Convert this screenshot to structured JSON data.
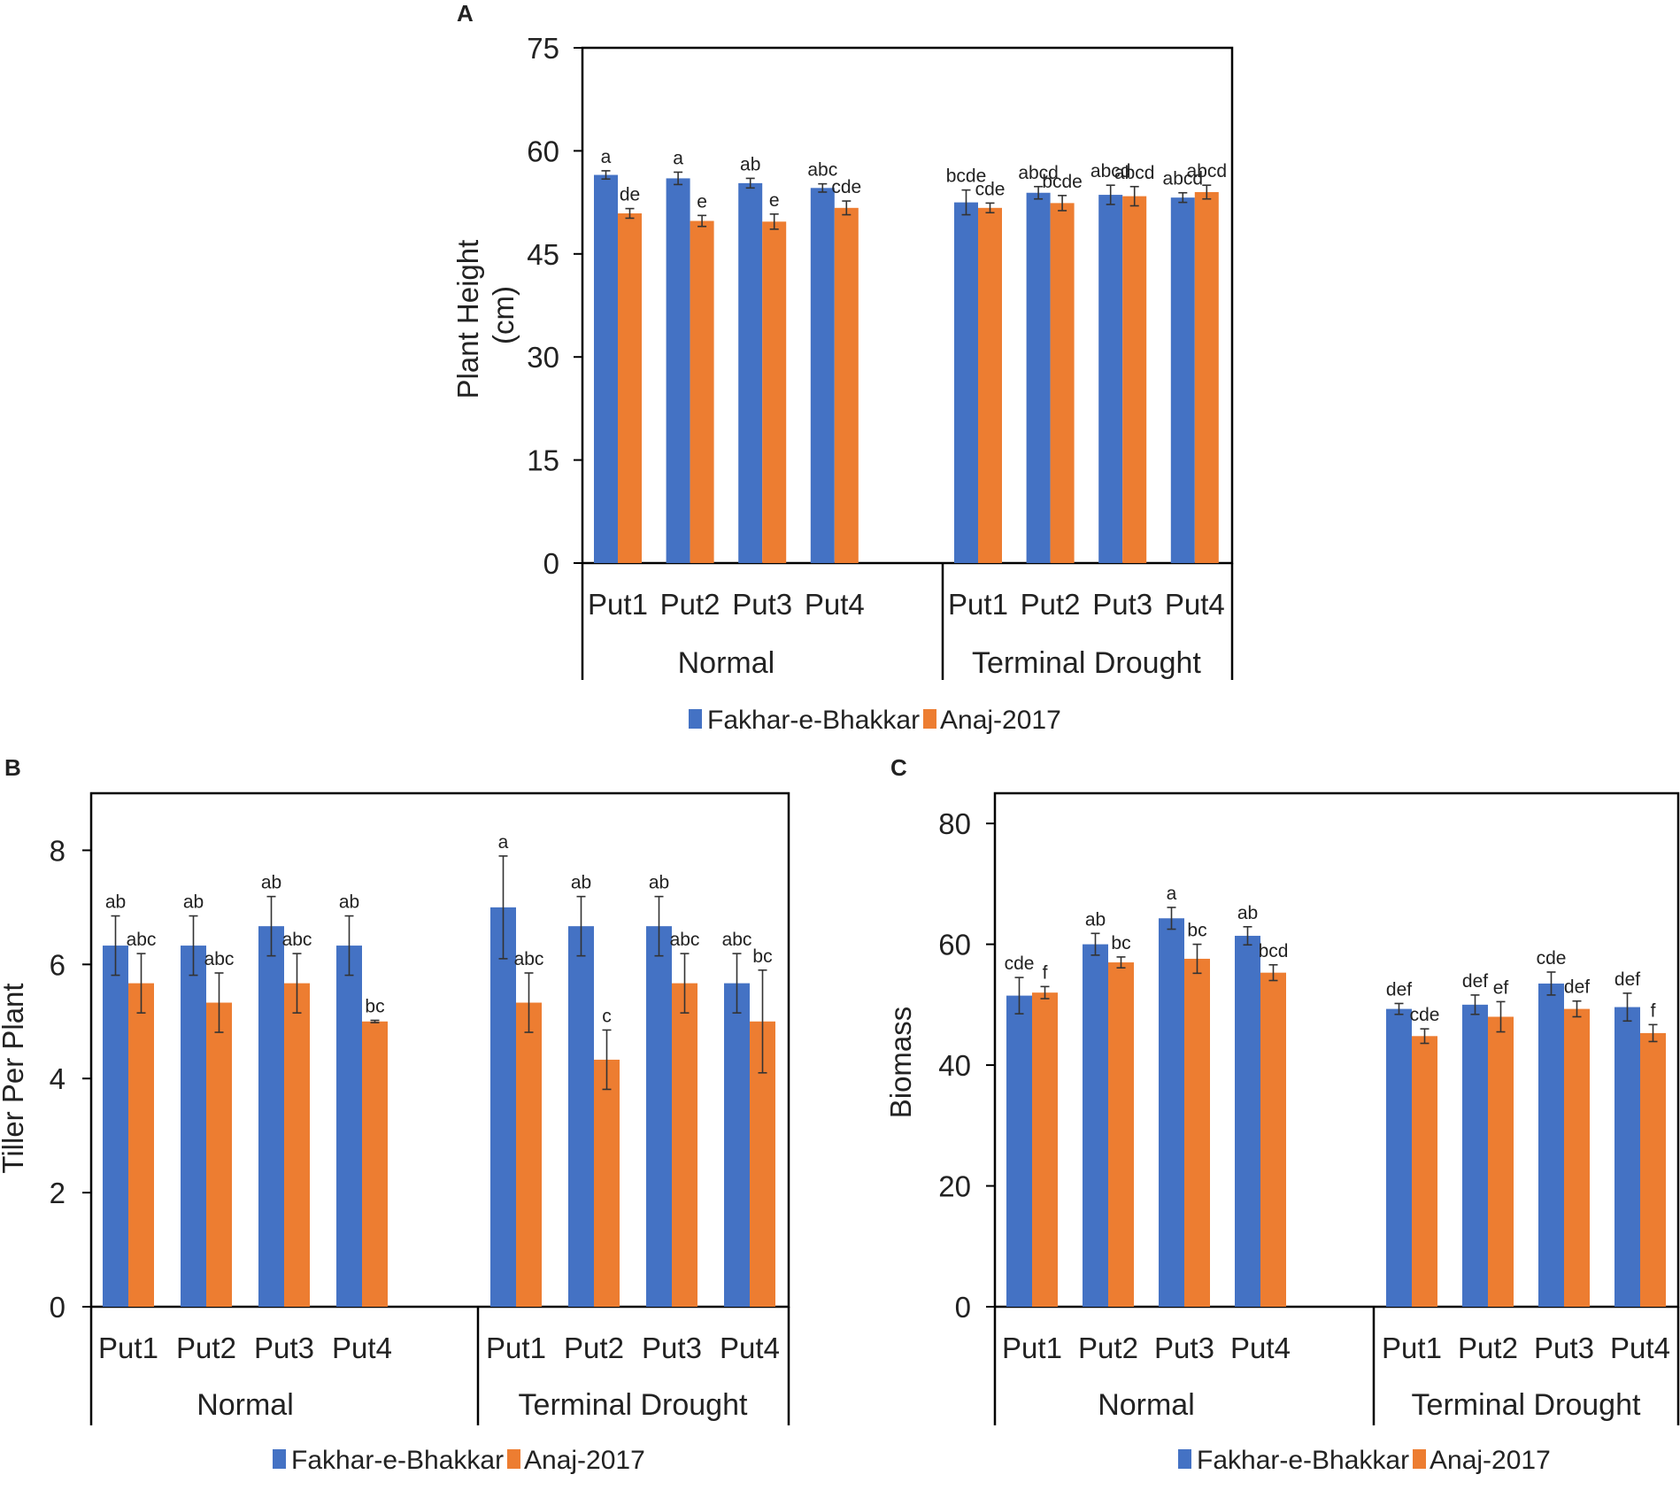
{
  "colors": {
    "series1": "#4472C4",
    "series2": "#ED7D31",
    "axis": "#000000"
  },
  "legend": {
    "series1": "Fakhar-e-Bhakkar",
    "series2": "Anaj-2017"
  },
  "chart_data": [
    {
      "panel": "A",
      "type": "bar",
      "ylabel": "Plant Height\n(cm)",
      "ylim": [
        0,
        75
      ],
      "yticks": [
        0,
        15,
        30,
        45,
        60,
        75
      ],
      "categories": [
        "Put1",
        "Put2",
        "Put3",
        "Put4"
      ],
      "groups": [
        "Normal",
        "Terminal Drought"
      ],
      "series": [
        {
          "name": "Fakhar-e-Bhakkar",
          "values": [
            [
              56.5,
              56.0,
              55.3,
              54.6
            ],
            [
              52.5,
              53.9,
              53.6,
              53.2
            ]
          ],
          "errors": [
            [
              0.6,
              0.9,
              0.7,
              0.6
            ],
            [
              1.8,
              0.9,
              1.4,
              0.7
            ]
          ],
          "labels": [
            [
              "a",
              "a",
              "ab",
              "abc"
            ],
            [
              "bcde",
              "abcd",
              "abcd",
              "abcd"
            ]
          ]
        },
        {
          "name": "Anaj-2017",
          "values": [
            [
              50.9,
              49.8,
              49.7,
              51.7
            ],
            [
              51.7,
              52.4,
              53.4,
              54.0
            ]
          ],
          "errors": [
            [
              0.7,
              0.8,
              1.1,
              1.0
            ],
            [
              0.7,
              1.1,
              1.4,
              1.0
            ]
          ],
          "labels": [
            [
              "de",
              "e",
              "e",
              "cde"
            ],
            [
              "cde",
              "bcde",
              "abcd",
              "abcd"
            ]
          ]
        }
      ]
    },
    {
      "panel": "B",
      "type": "bar",
      "ylabel": "Tiller Per Plant",
      "ylim": [
        0,
        9
      ],
      "yticks": [
        0,
        2,
        4,
        6,
        8
      ],
      "categories": [
        "Put1",
        "Put2",
        "Put3",
        "Put4"
      ],
      "groups": [
        "Normal",
        "Terminal Drought"
      ],
      "series": [
        {
          "name": "Fakhar-e-Bhakkar",
          "values": [
            [
              6.33,
              6.33,
              6.67,
              6.33
            ],
            [
              7.0,
              6.67,
              6.67,
              5.67
            ]
          ],
          "errors": [
            [
              0.52,
              0.52,
              0.52,
              0.52
            ],
            [
              0.9,
              0.52,
              0.52,
              0.52
            ]
          ],
          "labels": [
            [
              "ab",
              "ab",
              "ab",
              "ab"
            ],
            [
              "a",
              "ab",
              "ab",
              "abc"
            ]
          ]
        },
        {
          "name": "Anaj-2017",
          "values": [
            [
              5.67,
              5.33,
              5.67,
              5.0
            ],
            [
              5.33,
              4.33,
              5.67,
              5.0
            ]
          ],
          "errors": [
            [
              0.52,
              0.52,
              0.52,
              0.02
            ],
            [
              0.52,
              0.52,
              0.52,
              0.9
            ]
          ],
          "labels": [
            [
              "abc",
              "abc",
              "abc",
              "bc"
            ],
            [
              "abc",
              "c",
              "abc",
              "bc"
            ]
          ]
        }
      ]
    },
    {
      "panel": "C",
      "type": "bar",
      "ylabel": "Biomass",
      "ylim": [
        0,
        85
      ],
      "yticks": [
        0,
        20,
        40,
        60,
        80
      ],
      "categories": [
        "Put1",
        "Put2",
        "Put3",
        "Put4"
      ],
      "groups": [
        "Normal",
        "Terminal Drought"
      ],
      "series": [
        {
          "name": "Fakhar-e-Bhakkar",
          "values": [
            [
              51.5,
              60.0,
              64.3,
              61.4
            ],
            [
              49.3,
              50.0,
              53.5,
              49.6
            ]
          ],
          "errors": [
            [
              3.0,
              1.8,
              1.8,
              1.5
            ],
            [
              0.9,
              1.6,
              1.9,
              2.3
            ]
          ],
          "labels": [
            [
              "cde",
              "ab",
              "a",
              "ab"
            ],
            [
              "def",
              "def",
              "cde",
              "def"
            ]
          ]
        },
        {
          "name": "Anaj-2017",
          "values": [
            [
              52.0,
              57.0,
              57.6,
              55.3
            ],
            [
              44.8,
              48.0,
              49.3,
              45.3
            ]
          ],
          "errors": [
            [
              1.0,
              0.9,
              2.4,
              1.3
            ],
            [
              1.2,
              2.5,
              1.3,
              1.4
            ]
          ],
          "labels": [
            [
              "f",
              "bc",
              "bc",
              "bcd"
            ],
            [
              "cde",
              "ef",
              "def",
              "f"
            ]
          ]
        }
      ]
    }
  ]
}
